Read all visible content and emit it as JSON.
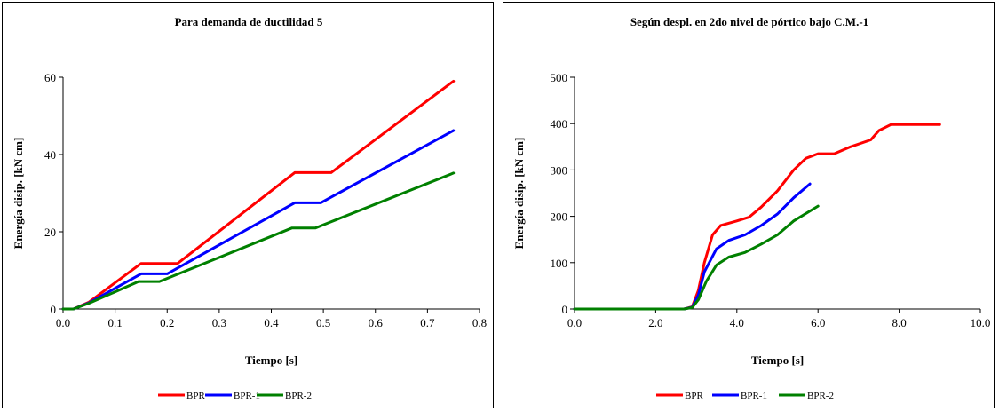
{
  "chart_data": [
    {
      "type": "line",
      "title": "Para demanda de ductilidad 5",
      "xlabel": "Tiempo [s]",
      "ylabel": "Energía disip. [kN cm]",
      "xlim": [
        0,
        0.8
      ],
      "ylim": [
        0,
        60
      ],
      "xticks": [
        "0.0",
        "0.1",
        "0.2",
        "0.3",
        "0.4",
        "0.5",
        "0.6",
        "0.7",
        "0.8"
      ],
      "yticks": [
        "0",
        "20",
        "40",
        "60"
      ],
      "grid": false,
      "legend": "bottom",
      "series": [
        {
          "name": "BPR",
          "color": "#ff0000",
          "points": [
            [
              0,
              0
            ],
            [
              0.02,
              0
            ],
            [
              0.05,
              1.8
            ],
            [
              0.15,
              11.8
            ],
            [
              0.22,
              11.8
            ],
            [
              0.445,
              35.3
            ],
            [
              0.515,
              35.3
            ],
            [
              0.75,
              59
            ]
          ]
        },
        {
          "name": "BPR-1",
          "color": "#0000ff",
          "points": [
            [
              0,
              0
            ],
            [
              0.02,
              0
            ],
            [
              0.05,
              1.6
            ],
            [
              0.15,
              9.1
            ],
            [
              0.2,
              9.1
            ],
            [
              0.445,
              27.5
            ],
            [
              0.495,
              27.5
            ],
            [
              0.75,
              46.2
            ]
          ]
        },
        {
          "name": "BPR-2",
          "color": "#008000",
          "points": [
            [
              0,
              0
            ],
            [
              0.02,
              0
            ],
            [
              0.05,
              1.5
            ],
            [
              0.145,
              7.1
            ],
            [
              0.185,
              7.1
            ],
            [
              0.44,
              21
            ],
            [
              0.485,
              21
            ],
            [
              0.75,
              35.2
            ]
          ]
        }
      ]
    },
    {
      "type": "line",
      "title": "Según despl. en 2do nivel de pórtico bajo C.M.-1",
      "xlabel": "Tiempo [s]",
      "ylabel": "Energía disip. [kN cm]",
      "xlim": [
        0,
        10
      ],
      "ylim": [
        0,
        500
      ],
      "xticks": [
        "0.0",
        "2.0",
        "4.0",
        "6.0",
        "8.0",
        "10.0"
      ],
      "yticks": [
        "0",
        "100",
        "200",
        "300",
        "400",
        "500"
      ],
      "grid": false,
      "legend": "bottom",
      "series": [
        {
          "name": "BPR",
          "color": "#ff0000",
          "points": [
            [
              0,
              0
            ],
            [
              2.7,
              0
            ],
            [
              2.9,
              5
            ],
            [
              3.05,
              40
            ],
            [
              3.2,
              100
            ],
            [
              3.4,
              160
            ],
            [
              3.6,
              180
            ],
            [
              4.0,
              190
            ],
            [
              4.3,
              198
            ],
            [
              4.6,
              220
            ],
            [
              5.0,
              255
            ],
            [
              5.4,
              300
            ],
            [
              5.7,
              325
            ],
            [
              6.0,
              335
            ],
            [
              6.4,
              335
            ],
            [
              6.8,
              350
            ],
            [
              7.3,
              365
            ],
            [
              7.5,
              385
            ],
            [
              7.8,
              398
            ],
            [
              9.0,
              398
            ]
          ]
        },
        {
          "name": "BPR-1",
          "color": "#0000ff",
          "points": [
            [
              0,
              0
            ],
            [
              2.7,
              0
            ],
            [
              2.9,
              4
            ],
            [
              3.05,
              30
            ],
            [
              3.2,
              80
            ],
            [
              3.5,
              130
            ],
            [
              3.8,
              148
            ],
            [
              4.2,
              160
            ],
            [
              4.6,
              180
            ],
            [
              5.0,
              205
            ],
            [
              5.4,
              240
            ],
            [
              5.8,
              270
            ]
          ]
        },
        {
          "name": "BPR-2",
          "color": "#008000",
          "points": [
            [
              0,
              0
            ],
            [
              2.7,
              0
            ],
            [
              2.9,
              3
            ],
            [
              3.05,
              20
            ],
            [
              3.25,
              60
            ],
            [
              3.5,
              95
            ],
            [
              3.8,
              112
            ],
            [
              4.2,
              122
            ],
            [
              4.6,
              140
            ],
            [
              5.0,
              160
            ],
            [
              5.4,
              190
            ],
            [
              6.0,
              222
            ]
          ]
        }
      ]
    }
  ]
}
